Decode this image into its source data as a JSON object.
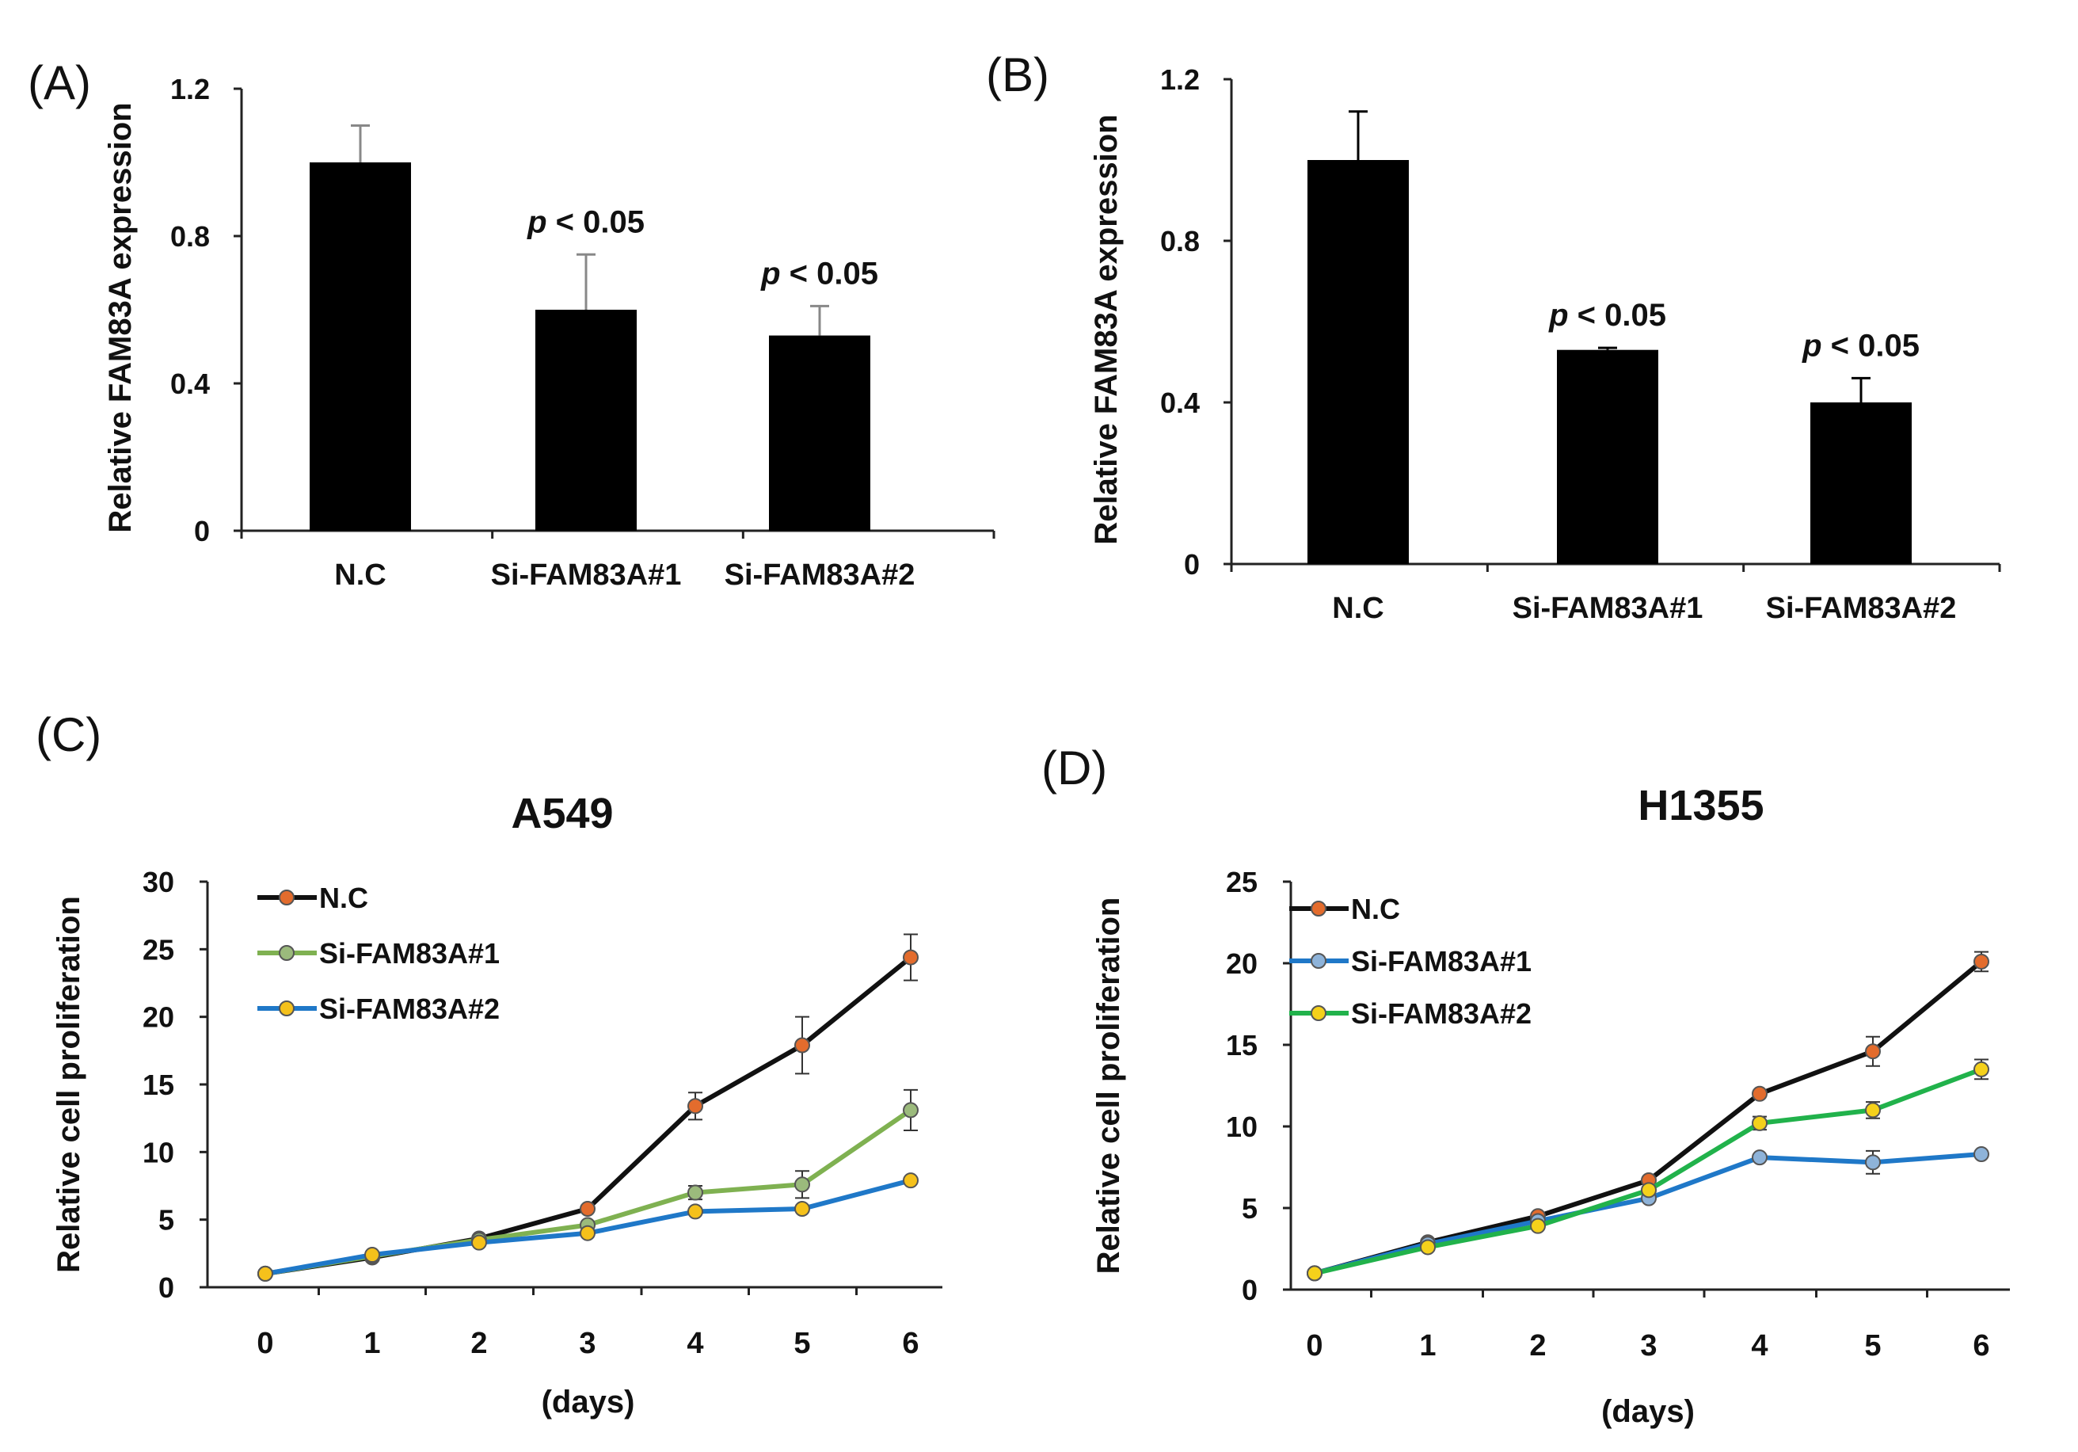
{
  "chart_data": [
    {
      "id": "A",
      "panel_label": "(A)",
      "type": "bar",
      "categories": [
        "N.C",
        "Si-FAM83A#1",
        "Si-FAM83A#2"
      ],
      "values": [
        1.0,
        0.6,
        0.53
      ],
      "errors": [
        0.1,
        0.15,
        0.08
      ],
      "error_color": "#888888",
      "bar_color": "#000000",
      "annotations": [
        {
          "category_index": 1,
          "p": "p",
          "text": " < 0.05"
        },
        {
          "category_index": 2,
          "p": "p",
          "text": " < 0.05"
        }
      ],
      "ylabel": "Relative FAM83A expression",
      "ylim": [
        0,
        1.2
      ],
      "yticks": [
        0,
        0.4,
        0.8,
        1.2
      ],
      "ytick_labels": [
        "0",
        "0.4",
        "0.8",
        "1.2"
      ]
    },
    {
      "id": "B",
      "panel_label": "(B)",
      "type": "bar",
      "categories": [
        "N.C",
        "Si-FAM83A#1",
        "Si-FAM83A#2"
      ],
      "values": [
        1.0,
        0.53,
        0.4
      ],
      "errors": [
        0.12,
        0.005,
        0.06
      ],
      "error_color": "#000000",
      "bar_color": "#000000",
      "annotations": [
        {
          "category_index": 1,
          "p": "p",
          "text": " < 0.05"
        },
        {
          "category_index": 2,
          "p": "p",
          "text": " < 0.05"
        }
      ],
      "ylabel": "Relative FAM83A expression",
      "ylim": [
        0,
        1.2
      ],
      "yticks": [
        0,
        0.4,
        0.8,
        1.2
      ],
      "ytick_labels": [
        "0",
        "0.4",
        "0.8",
        "1.2"
      ]
    },
    {
      "id": "C",
      "panel_label": "(C)",
      "type": "line",
      "title": "A549",
      "x": [
        0,
        1,
        2,
        3,
        4,
        5,
        6
      ],
      "xlabel": "(days)",
      "ylabel": "Relative cell proliferation",
      "ylim": [
        0,
        30
      ],
      "yticks": [
        0,
        5,
        10,
        15,
        20,
        25,
        30
      ],
      "series": [
        {
          "name": "N.C",
          "values": [
            1.0,
            2.2,
            3.6,
            5.8,
            13.4,
            17.9,
            24.4
          ],
          "errors": [
            0,
            0,
            0,
            0,
            1.0,
            2.1,
            1.7
          ],
          "line_color": "#111111",
          "marker_color": "#e36c2d"
        },
        {
          "name": "Si-FAM83A#1",
          "values": [
            1.0,
            2.3,
            3.5,
            4.6,
            7.0,
            7.6,
            13.1
          ],
          "errors": [
            0,
            0,
            0,
            0,
            0.5,
            1.0,
            1.5
          ],
          "line_color": "#7fb151",
          "marker_color": "#9bba7c"
        },
        {
          "name": "Si-FAM83A#2",
          "values": [
            1.0,
            2.4,
            3.3,
            4.0,
            5.6,
            5.8,
            7.9
          ],
          "errors": [
            0,
            0,
            0,
            0,
            0,
            0,
            0
          ],
          "line_color": "#1f78c8",
          "marker_color": "#f5c11b"
        }
      ]
    },
    {
      "id": "D",
      "panel_label": "(D)",
      "type": "line",
      "title": "H1355",
      "x": [
        0,
        1,
        2,
        3,
        4,
        5,
        6
      ],
      "xlabel": "(days)",
      "ylabel": "Relative cell proliferation",
      "ylim": [
        0,
        25
      ],
      "yticks": [
        0,
        5,
        10,
        15,
        20,
        25
      ],
      "series": [
        {
          "name": "N.C",
          "values": [
            1.0,
            2.9,
            4.5,
            6.7,
            12.0,
            14.6,
            20.1
          ],
          "errors": [
            0,
            0,
            0,
            0,
            0,
            0.9,
            0.6
          ],
          "line_color": "#111111",
          "marker_color": "#e36c2d"
        },
        {
          "name": "Si-FAM83A#1",
          "values": [
            1.0,
            2.8,
            4.2,
            5.6,
            8.1,
            7.8,
            8.3
          ],
          "errors": [
            0,
            0,
            0,
            0,
            0,
            0.7,
            0
          ],
          "line_color": "#1f78c8",
          "marker_color": "#8eb3d9"
        },
        {
          "name": "Si-FAM83A#2",
          "values": [
            1.0,
            2.6,
            3.9,
            6.1,
            10.2,
            11.0,
            13.5
          ],
          "errors": [
            0,
            0,
            0,
            0,
            0.4,
            0.5,
            0.6
          ],
          "line_color": "#21b24b",
          "marker_color": "#f5d11b"
        }
      ]
    }
  ]
}
